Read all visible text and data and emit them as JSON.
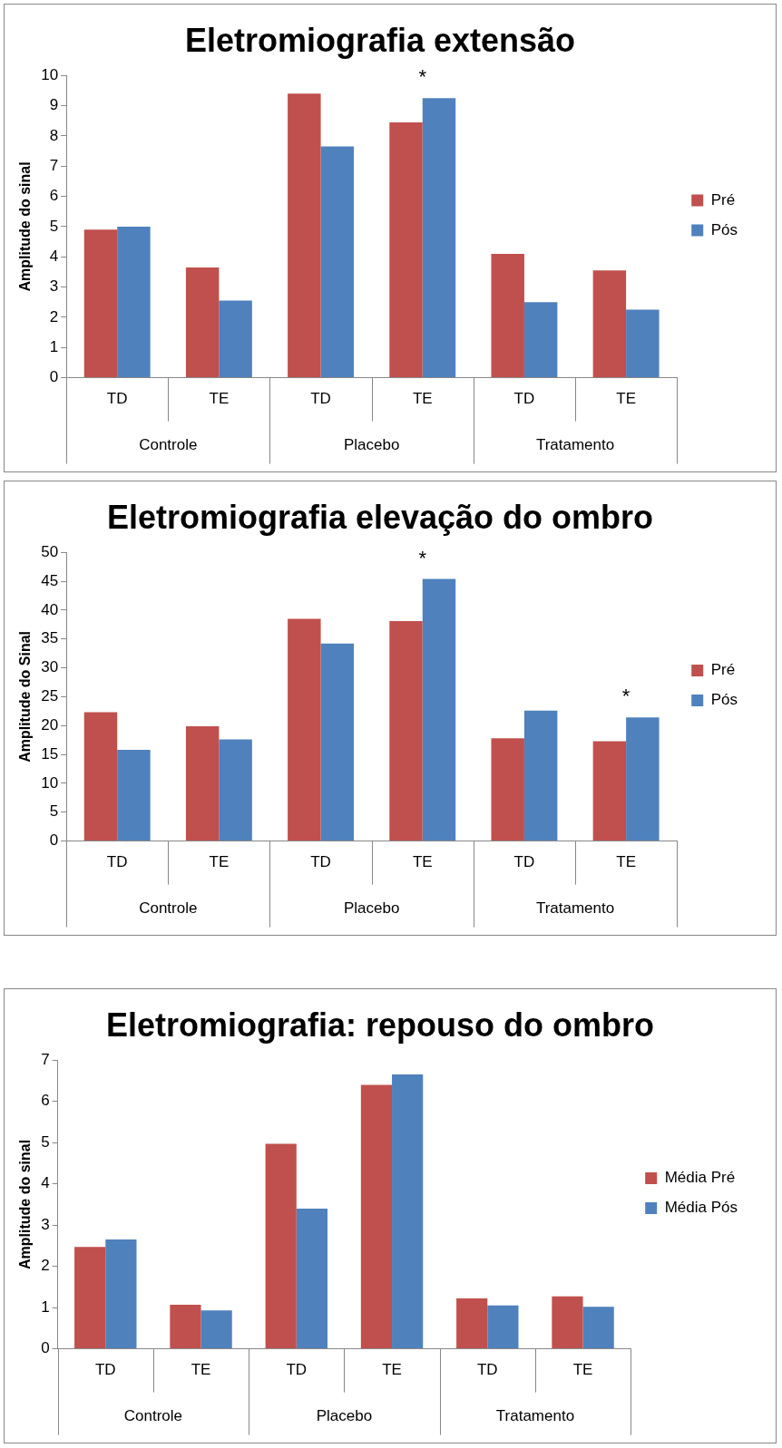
{
  "chart_data": [
    {
      "type": "bar",
      "title": "Eletromiografia extensão",
      "ylabel": "Amplitude do sinal",
      "categories": [
        "TD",
        "TE",
        "TD",
        "TE",
        "TD",
        "TE"
      ],
      "series": [
        {
          "name": "Pré",
          "color": "#c0504d",
          "values": [
            4.9,
            3.65,
            9.4,
            8.45,
            4.1,
            3.55
          ]
        },
        {
          "name": "Pós",
          "color": "#4f81bd",
          "values": [
            5.0,
            2.55,
            7.65,
            9.25,
            2.5,
            2.25
          ]
        }
      ],
      "ylim": [
        0,
        10
      ],
      "yticks": [
        0,
        1,
        2,
        3,
        4,
        5,
        6,
        7,
        8,
        9,
        10
      ],
      "grid": false,
      "legend": "right",
      "annotations": [
        "Controle",
        "Placebo",
        "Tratamento",
        "*"
      ]
    },
    {
      "type": "bar",
      "title": "Eletromiografia elevação do ombro",
      "ylabel": "Amplitude do Sinal",
      "categories": [
        "TD",
        "TE",
        "TD",
        "TE",
        "TD",
        "TE"
      ],
      "series": [
        {
          "name": "Pré",
          "color": "#c0504d",
          "values": [
            22.3,
            19.9,
            38.5,
            38.1,
            17.8,
            17.3
          ]
        },
        {
          "name": "Pós",
          "color": "#4f81bd",
          "values": [
            15.8,
            17.6,
            34.2,
            45.4,
            22.6,
            21.4
          ]
        }
      ],
      "ylim": [
        0,
        50
      ],
      "yticks": [
        0,
        5,
        10,
        15,
        20,
        25,
        30,
        35,
        40,
        45,
        50
      ],
      "grid": false,
      "legend": "right",
      "annotations": [
        "Controle",
        "Placebo",
        "Tratamento",
        "*",
        "*"
      ]
    },
    {
      "type": "bar",
      "title": "Eletromiografia: repouso do ombro",
      "ylabel": "Amplitude do sinal",
      "categories": [
        "TD",
        "TE",
        "TD",
        "TE",
        "TD",
        "TE"
      ],
      "series": [
        {
          "name": "Média Pré",
          "color": "#c0504d",
          "values": [
            2.47,
            1.07,
            4.97,
            6.4,
            1.22,
            1.27
          ]
        },
        {
          "name": "Média Pós",
          "color": "#4f81bd",
          "values": [
            2.65,
            0.93,
            3.4,
            6.65,
            1.05,
            1.02
          ]
        }
      ],
      "ylim": [
        0,
        7
      ],
      "yticks": [
        0,
        1,
        2,
        3,
        4,
        5,
        6,
        7
      ],
      "grid": false,
      "legend": "right",
      "annotations": [
        "Controle",
        "Placebo",
        "Tratamento"
      ]
    }
  ]
}
